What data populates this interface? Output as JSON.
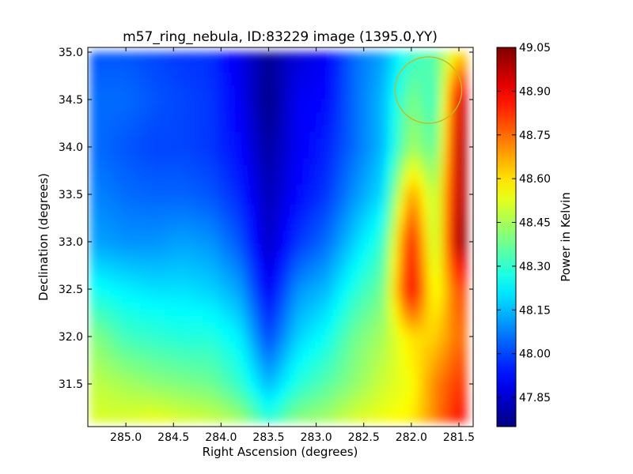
{
  "chart_data": {
    "type": "heatmap",
    "title": "m57_ring_nebula, ID:83229 image (1395.0,YY)",
    "xlabel": "Right Ascension (degrees)",
    "ylabel": "Declination (degrees)",
    "x_axis": {
      "reversed": true,
      "range": [
        285.4,
        281.35
      ],
      "ticks": [
        285.0,
        284.5,
        284.0,
        283.5,
        283.0,
        282.5,
        282.0,
        281.5
      ],
      "tick_labels": [
        "285.0",
        "284.5",
        "284.0",
        "283.5",
        "283.0",
        "282.5",
        "282.0",
        "281.5"
      ]
    },
    "y_axis": {
      "range": [
        31.05,
        35.05
      ],
      "ticks": [
        31.5,
        32.0,
        32.5,
        33.0,
        33.5,
        34.0,
        34.5,
        35.0
      ],
      "tick_labels": [
        "31.5",
        "32.0",
        "32.5",
        "33.0",
        "33.5",
        "34.0",
        "34.5",
        "35.0"
      ]
    },
    "colorbar": {
      "label": "Power in Kelvin",
      "colormap": "jet",
      "range": [
        47.75,
        49.05
      ],
      "ticks": [
        47.85,
        48.0,
        48.15,
        48.3,
        48.45,
        48.6,
        48.75,
        48.9,
        49.05
      ],
      "tick_labels": [
        "47.85",
        "48.00",
        "48.15",
        "48.30",
        "48.45",
        "48.60",
        "48.75",
        "48.90",
        "49.05"
      ]
    },
    "grid": false,
    "heatmap": {
      "ra": [
        285.3,
        285.0,
        284.7,
        284.4,
        284.1,
        283.8,
        283.5,
        283.2,
        282.9,
        282.6,
        282.3,
        282.0,
        281.75,
        281.5
      ],
      "dec": [
        35.0,
        34.5,
        34.0,
        33.5,
        33.0,
        32.5,
        32.0,
        31.5,
        31.1
      ],
      "values": [
        [
          48.02,
          48.02,
          48.0,
          47.98,
          47.97,
          47.88,
          47.78,
          47.86,
          47.9,
          48.05,
          48.12,
          48.3,
          48.35,
          48.6
        ],
        [
          48.05,
          48.05,
          48.02,
          48.0,
          47.98,
          47.9,
          47.76,
          47.9,
          47.92,
          48.05,
          48.15,
          48.4,
          48.3,
          48.95
        ],
        [
          48.05,
          48.02,
          48.0,
          48.0,
          47.98,
          47.92,
          47.79,
          47.9,
          47.95,
          48.05,
          48.15,
          48.45,
          48.35,
          48.98
        ],
        [
          48.08,
          48.05,
          48.04,
          48.04,
          48.02,
          47.96,
          47.82,
          47.92,
          47.98,
          48.1,
          48.2,
          48.7,
          48.45,
          48.98
        ],
        [
          48.12,
          48.1,
          48.1,
          48.12,
          48.1,
          48.02,
          47.84,
          47.98,
          48.05,
          48.18,
          48.3,
          48.88,
          48.45,
          49.02
        ],
        [
          48.25,
          48.22,
          48.2,
          48.2,
          48.18,
          48.12,
          47.9,
          48.1,
          48.15,
          48.28,
          48.38,
          48.93,
          48.52,
          48.8
        ],
        [
          48.4,
          48.32,
          48.3,
          48.28,
          48.28,
          48.22,
          48.0,
          48.18,
          48.25,
          48.38,
          48.45,
          48.6,
          48.62,
          48.75
        ],
        [
          48.48,
          48.45,
          48.42,
          48.4,
          48.38,
          48.3,
          48.15,
          48.28,
          48.35,
          48.42,
          48.5,
          48.55,
          48.72,
          48.82
        ],
        [
          48.52,
          48.52,
          48.55,
          48.52,
          48.5,
          48.45,
          48.3,
          48.42,
          48.45,
          48.52,
          48.55,
          48.58,
          48.72,
          48.88
        ]
      ]
    },
    "annotations": [
      {
        "shape": "circle",
        "center": [
          281.82,
          34.6
        ],
        "radius": 0.35,
        "color": "#c8b820"
      }
    ]
  }
}
